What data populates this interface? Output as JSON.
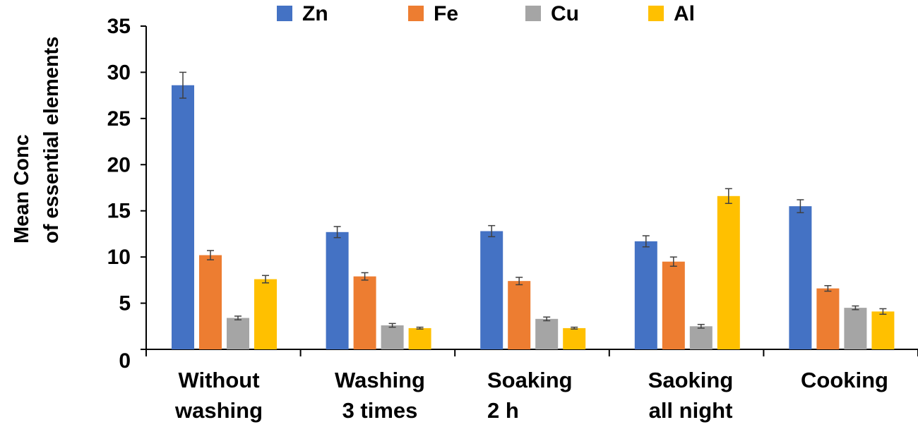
{
  "chart_data": {
    "type": "bar",
    "title": "",
    "xlabel": "",
    "ylabel_lines": [
      "Mean Conc",
      "of essential elements"
    ],
    "ylim": [
      0,
      35
    ],
    "yticks": [
      0,
      5,
      10,
      15,
      20,
      25,
      30,
      35
    ],
    "categories": [
      [
        "Without",
        "washing"
      ],
      [
        "Washing",
        "3 times"
      ],
      [
        "Soaking",
        "2 h"
      ],
      [
        "Saoking",
        "all night"
      ],
      [
        "Cooking"
      ]
    ],
    "series": [
      {
        "name": "Zn",
        "color": "#4472C4",
        "values": [
          28.6,
          12.7,
          12.8,
          11.7,
          15.5
        ],
        "errors": [
          1.4,
          0.6,
          0.6,
          0.6,
          0.7
        ]
      },
      {
        "name": "Fe",
        "color": "#ED7D31",
        "values": [
          10.2,
          7.9,
          7.4,
          9.5,
          6.6
        ],
        "errors": [
          0.5,
          0.4,
          0.4,
          0.5,
          0.3
        ]
      },
      {
        "name": "Cu",
        "color": "#A5A5A5",
        "values": [
          3.4,
          2.6,
          3.3,
          2.5,
          4.5
        ],
        "errors": [
          0.2,
          0.2,
          0.2,
          0.2,
          0.2
        ]
      },
      {
        "name": "Al",
        "color": "#FFC000",
        "values": [
          7.6,
          2.3,
          2.3,
          16.6,
          4.1
        ],
        "errors": [
          0.4,
          0.1,
          0.1,
          0.8,
          0.3
        ]
      }
    ],
    "legend_position": "top"
  }
}
